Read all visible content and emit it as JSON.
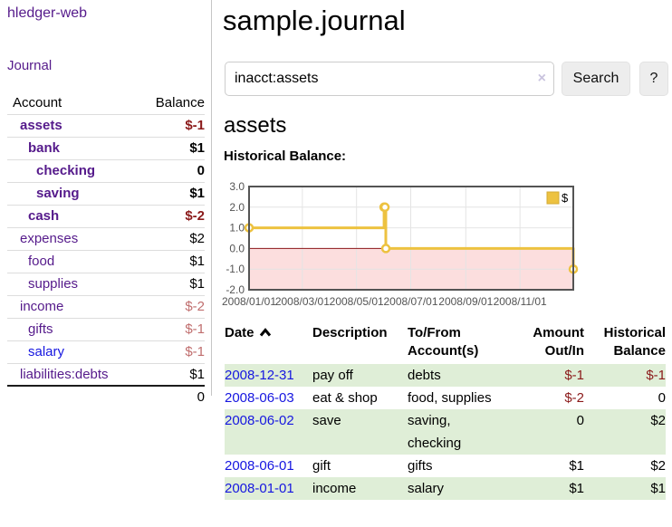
{
  "app": {
    "title": "hledger-web",
    "nav_journal": "Journal"
  },
  "sidebar": {
    "headers": {
      "account": "Account",
      "balance": "Balance"
    },
    "accounts": [
      {
        "name": "assets",
        "balance": "$-1",
        "depth": 1,
        "bold": true,
        "name_tone": "purple",
        "balance_tone": "negative"
      },
      {
        "name": "bank",
        "balance": "$1",
        "depth": 2,
        "bold": true,
        "name_tone": "purple",
        "balance_tone": "normal"
      },
      {
        "name": "checking",
        "balance": "0",
        "depth": 3,
        "bold": true,
        "name_tone": "purple",
        "balance_tone": "normal"
      },
      {
        "name": "saving",
        "balance": "$1",
        "depth": 3,
        "bold": true,
        "name_tone": "purple",
        "balance_tone": "normal"
      },
      {
        "name": "cash",
        "balance": "$-2",
        "depth": 2,
        "bold": true,
        "name_tone": "purple",
        "balance_tone": "negative"
      },
      {
        "name": "expenses",
        "balance": "$2",
        "depth": 1,
        "bold": false,
        "name_tone": "purple",
        "balance_tone": "normal"
      },
      {
        "name": "food",
        "balance": "$1",
        "depth": 2,
        "bold": false,
        "name_tone": "purple",
        "balance_tone": "normal"
      },
      {
        "name": "supplies",
        "balance": "$1",
        "depth": 2,
        "bold": false,
        "name_tone": "purple",
        "balance_tone": "normal"
      },
      {
        "name": "income",
        "balance": "$-2",
        "depth": 1,
        "bold": false,
        "name_tone": "purple",
        "balance_tone": "negative-dim"
      },
      {
        "name": "gifts",
        "balance": "$-1",
        "depth": 2,
        "bold": false,
        "name_tone": "purple",
        "balance_tone": "negative-dim"
      },
      {
        "name": "salary",
        "balance": "$-1",
        "depth": 2,
        "bold": false,
        "name_tone": "blue",
        "balance_tone": "negative-dim"
      },
      {
        "name": "liabilities:debts",
        "balance": "$1",
        "depth": 1,
        "bold": false,
        "name_tone": "purple",
        "balance_tone": "normal"
      }
    ],
    "total": "0"
  },
  "page": {
    "title": "sample.journal"
  },
  "search": {
    "value": "inacct:assets",
    "clear_icon": "×",
    "button_label": "Search",
    "help_label": "?"
  },
  "icons": {
    "sort_ascending": "chevron-up",
    "clear_search": "x-clear",
    "help": "question-mark"
  },
  "account_page": {
    "heading": "assets",
    "chart_label": "Historical Balance:"
  },
  "chart_data": {
    "type": "line",
    "subtype": "step-with-markers",
    "legend_label": "$",
    "legend_position": "top-right",
    "grid": true,
    "ylim": [
      -2,
      3
    ],
    "x_range_days": [
      0,
      365
    ],
    "y_ticks": [
      {
        "value": 3,
        "label": "3.0"
      },
      {
        "value": 2,
        "label": "2.0"
      },
      {
        "value": 1,
        "label": "1.0"
      },
      {
        "value": 0,
        "label": "0.0"
      },
      {
        "value": -1,
        "label": "-1.0"
      },
      {
        "value": -2,
        "label": "-2.0"
      }
    ],
    "x_ticks": [
      {
        "day": 0,
        "label": "2008/01/01"
      },
      {
        "day": 60,
        "label": "2008/03/01"
      },
      {
        "day": 121,
        "label": "2008/05/01"
      },
      {
        "day": 182,
        "label": "2008/07/01"
      },
      {
        "day": 244,
        "label": "2008/09/01"
      },
      {
        "day": 305,
        "label": "2008/11/01"
      }
    ],
    "points": [
      {
        "date": "2008-01-01",
        "day": 0,
        "value": 1
      },
      {
        "date": "2008-06-01",
        "day": 152,
        "value": 2
      },
      {
        "date": "2008-06-02",
        "day": 153,
        "value": 2
      },
      {
        "date": "2008-06-03",
        "day": 154,
        "value": 0
      },
      {
        "date": "2008-12-31",
        "day": 365,
        "value": -1
      }
    ],
    "colors": {
      "series": "#edc240",
      "legend_border": "#d3ab35",
      "negative_fill": "#fcdede",
      "zero_line": "#8b1518",
      "grid": "#e4e4e4",
      "border": "#545454",
      "axis": "#545454"
    }
  },
  "register": {
    "headers": {
      "date": "Date",
      "description": "Description",
      "tofrom": "To/From Account(s)",
      "amount": "Amount Out/In",
      "balance": "Historical Balance"
    },
    "rows": [
      {
        "date": "2008-12-31",
        "description": "pay off",
        "accounts": "debts",
        "amount": "$-1",
        "amount_tone": "negative",
        "balance": "$-1",
        "balance_tone": "negative",
        "shaded": true
      },
      {
        "date": "2008-06-03",
        "description": "eat & shop",
        "accounts": "food, supplies",
        "amount": "$-2",
        "amount_tone": "negative",
        "balance": "0",
        "balance_tone": "normal",
        "shaded": false
      },
      {
        "date": "2008-06-02",
        "description": "save",
        "accounts": "saving, checking",
        "amount": "0",
        "amount_tone": "normal",
        "balance": "$2",
        "balance_tone": "normal",
        "shaded": true
      },
      {
        "date": "2008-06-01",
        "description": "gift",
        "accounts": "gifts",
        "amount": "$1",
        "amount_tone": "normal",
        "balance": "$2",
        "balance_tone": "normal",
        "shaded": false
      },
      {
        "date": "2008-01-01",
        "description": "income",
        "accounts": "salary",
        "amount": "$1",
        "amount_tone": "normal",
        "balance": "$1",
        "balance_tone": "normal",
        "shaded": true
      }
    ]
  }
}
